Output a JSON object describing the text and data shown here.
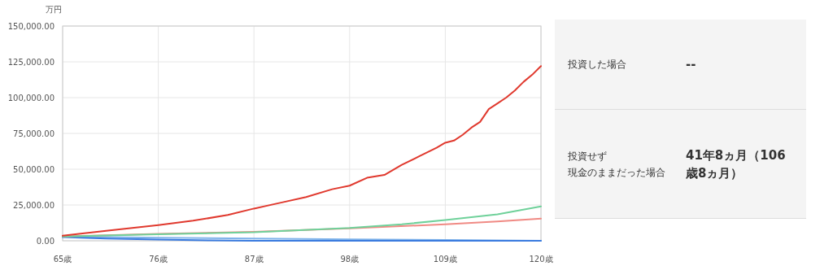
{
  "chart_data": [
    {
      "type": "line",
      "ylabel": "万円",
      "grid": true,
      "xlim": [
        65,
        120
      ],
      "ylim": [
        0,
        150000
      ],
      "xticks": [
        {
          "value": 65,
          "label": "65歳"
        },
        {
          "value": 76,
          "label": "76歳"
        },
        {
          "value": 87,
          "label": "87歳"
        },
        {
          "value": 98,
          "label": "98歳"
        },
        {
          "value": 109,
          "label": "109歳"
        },
        {
          "value": 120,
          "label": "120歳"
        }
      ],
      "yticks": [
        {
          "value": 0,
          "label": "0.00"
        },
        {
          "value": 25000,
          "label": "25,000.00"
        },
        {
          "value": 50000,
          "label": "50,000.00"
        },
        {
          "value": 75000,
          "label": "75,000.00"
        },
        {
          "value": 100000,
          "label": "100,000.00"
        },
        {
          "value": 125000,
          "label": "125,000.00"
        },
        {
          "value": 150000,
          "label": "150,000.00"
        }
      ],
      "x": [
        65,
        70,
        76,
        80,
        84,
        87,
        90,
        93,
        96,
        98,
        100,
        102,
        104,
        106,
        108,
        109,
        110,
        111,
        112,
        113,
        114,
        115,
        116,
        117,
        118,
        119,
        120
      ],
      "series": [
        {
          "color": "#7fb3ea",
          "x": [
            65,
            76,
            87,
            98,
            109,
            120
          ],
          "values": [
            3000,
            2200,
            1600,
            1000,
            500,
            0
          ]
        },
        {
          "color": "#3a7bdf",
          "x": [
            65,
            70,
            76,
            82,
            87,
            98,
            120
          ],
          "values": [
            2500,
            1500,
            800,
            300,
            0,
            0,
            0
          ]
        },
        {
          "color": "#f08a84",
          "x": [
            65,
            76,
            87,
            98,
            109,
            115,
            120
          ],
          "values": [
            3000,
            4800,
            6300,
            8700,
            11500,
            13500,
            15500
          ]
        },
        {
          "color": "#6fd19a",
          "x": [
            65,
            76,
            87,
            98,
            104,
            109,
            115,
            120
          ],
          "values": [
            3000,
            4500,
            6000,
            9000,
            11500,
            14500,
            18500,
            24000
          ]
        },
        {
          "color": "#e0392e",
          "values": [
            3500,
            7000,
            11000,
            14000,
            18000,
            22500,
            26500,
            30500,
            36000,
            38500,
            44000,
            46000,
            53000,
            59000,
            65000,
            68500,
            70000,
            74000,
            79000,
            83000,
            92000,
            96000,
            100000,
            105000,
            111000,
            116000,
            122000
          ]
        }
      ]
    },
    {
      "type": "other",
      "annotations": [
        "投資した場合",
        "--",
        "投資せず",
        "現金のままだった場合",
        "41年8ヵ月（106歳8ヵ月）"
      ]
    }
  ]
}
